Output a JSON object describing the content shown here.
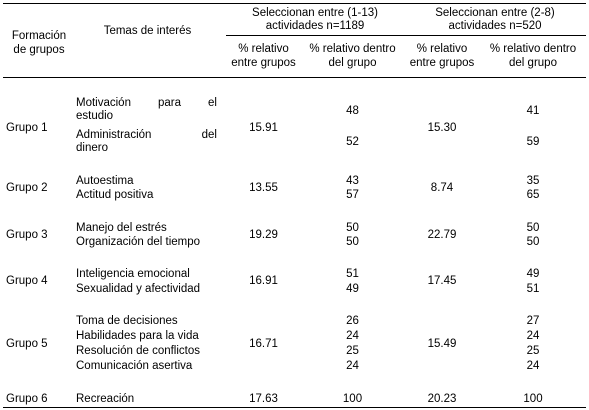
{
  "header": {
    "col_group": [
      "Formación",
      "de grupos"
    ],
    "col_topics": "Temas de interés",
    "sel_1_13": [
      "Seleccionan entre (1-13)",
      "actividades n=1189"
    ],
    "sel_2_8": [
      "Seleccionan entre (2-8)",
      "actividades n=520"
    ],
    "pct_between": [
      "% relativo",
      "entre grupos"
    ],
    "pct_within": [
      "% relativo dentro",
      "del grupo"
    ]
  },
  "groups": [
    {
      "name": "Grupo 1",
      "pct_between_1": "15.91",
      "pct_between_2": "15.30",
      "topics_g1": {
        "t1_words": [
          "Motivación",
          "para",
          "el"
        ],
        "t1_line2": "estudio",
        "t2_words": [
          "Administración",
          "del"
        ],
        "t2_line2": "dinero"
      },
      "within_1": [
        "48",
        "52"
      ],
      "within_2": [
        "41",
        "59"
      ]
    },
    {
      "name": "Grupo 2",
      "topics": [
        "Autoestima",
        "Actitud positiva"
      ],
      "pct_between_1": "13.55",
      "within_1": [
        "43",
        "57"
      ],
      "pct_between_2": "8.74",
      "within_2": [
        "35",
        "65"
      ]
    },
    {
      "name": "Grupo 3",
      "topics": [
        "Manejo del estrés",
        "Organización del tiempo"
      ],
      "pct_between_1": "19.29",
      "within_1": [
        "50",
        "50"
      ],
      "pct_between_2": "22.79",
      "within_2": [
        "50",
        "50"
      ]
    },
    {
      "name": "Grupo 4",
      "topics": [
        "Inteligencia emocional",
        "Sexualidad y afectividad"
      ],
      "pct_between_1": "16.91",
      "within_1": [
        "51",
        "49"
      ],
      "pct_between_2": "17.45",
      "within_2": [
        "49",
        "51"
      ]
    },
    {
      "name": "Grupo 5",
      "topics": [
        "Toma de decisiones",
        "Habilidades para la vida",
        "Resolución de conflictos",
        "Comunicación asertiva"
      ],
      "pct_between_1": "16.71",
      "within_1": [
        "26",
        "24",
        "25",
        "24"
      ],
      "pct_between_2": "15.49",
      "within_2": [
        "27",
        "24",
        "25",
        "24"
      ]
    },
    {
      "name": "Grupo 6",
      "topics": [
        "Recreación"
      ],
      "pct_between_1": "17.63",
      "within_1": [
        "100"
      ],
      "pct_between_2": "20.23",
      "within_2": [
        "100"
      ]
    }
  ]
}
